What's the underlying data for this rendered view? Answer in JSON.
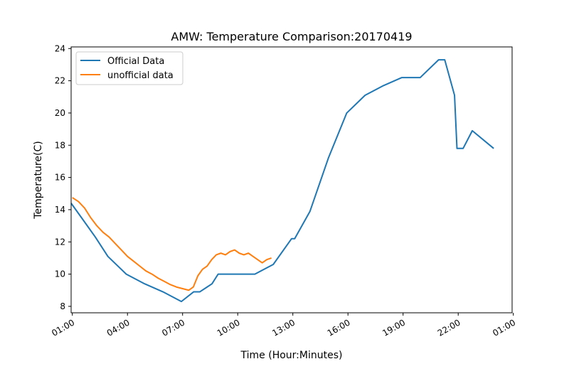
{
  "chart_data": {
    "type": "line",
    "title": "AMW: Temperature Comparison:20170419",
    "xlabel": "Time (Hour:Minutes)",
    "ylabel": "Temperature(C)",
    "xlim": [
      "00:56",
      "24:56"
    ],
    "ylim": [
      7.6,
      24.1
    ],
    "x_ticks": [
      "01:00",
      "04:00",
      "07:00",
      "10:00",
      "13:00",
      "16:00",
      "19:00",
      "22:00",
      "01:00"
    ],
    "y_ticks": [
      "8",
      "10",
      "12",
      "14",
      "16",
      "18",
      "20",
      "22",
      "24"
    ],
    "grid": false,
    "legend_position": "upper left",
    "series": [
      {
        "name": "Official Data",
        "color": "#1f77b4",
        "points": [
          [
            "00:56",
            14.4
          ],
          [
            "01:30",
            13.5
          ],
          [
            "02:15",
            12.3
          ],
          [
            "02:56",
            11.1
          ],
          [
            "03:56",
            10.0
          ],
          [
            "04:56",
            9.4
          ],
          [
            "05:56",
            8.9
          ],
          [
            "06:56",
            8.3
          ],
          [
            "07:36",
            8.9
          ],
          [
            "07:56",
            8.9
          ],
          [
            "08:20",
            9.2
          ],
          [
            "08:36",
            9.4
          ],
          [
            "08:56",
            10.0
          ],
          [
            "09:56",
            10.0
          ],
          [
            "10:56",
            10.0
          ],
          [
            "11:56",
            10.6
          ],
          [
            "12:56",
            12.2
          ],
          [
            "13:06",
            12.2
          ],
          [
            "13:56",
            13.9
          ],
          [
            "14:56",
            17.2
          ],
          [
            "15:56",
            20.0
          ],
          [
            "16:56",
            21.1
          ],
          [
            "17:56",
            21.7
          ],
          [
            "18:56",
            22.2
          ],
          [
            "19:56",
            22.2
          ],
          [
            "20:56",
            23.3
          ],
          [
            "21:16",
            23.3
          ],
          [
            "21:48",
            21.1
          ],
          [
            "21:56",
            17.8
          ],
          [
            "22:16",
            17.8
          ],
          [
            "22:46",
            18.9
          ],
          [
            "23:56",
            17.8
          ]
        ]
      },
      {
        "name": "unofficial data",
        "color": "#ff7f0e",
        "points": [
          [
            "01:00",
            14.75
          ],
          [
            "01:20",
            14.5
          ],
          [
            "01:40",
            14.1
          ],
          [
            "02:00",
            13.5
          ],
          [
            "02:20",
            13.0
          ],
          [
            "02:40",
            12.6
          ],
          [
            "03:00",
            12.3
          ],
          [
            "03:20",
            11.9
          ],
          [
            "03:40",
            11.5
          ],
          [
            "04:00",
            11.1
          ],
          [
            "04:20",
            10.8
          ],
          [
            "04:40",
            10.5
          ],
          [
            "05:00",
            10.2
          ],
          [
            "05:20",
            10.0
          ],
          [
            "05:40",
            9.75
          ],
          [
            "06:00",
            9.55
          ],
          [
            "06:20",
            9.35
          ],
          [
            "06:40",
            9.2
          ],
          [
            "07:00",
            9.1
          ],
          [
            "07:20",
            9.0
          ],
          [
            "07:35",
            9.2
          ],
          [
            "07:50",
            9.9
          ],
          [
            "08:05",
            10.3
          ],
          [
            "08:20",
            10.5
          ],
          [
            "08:35",
            10.9
          ],
          [
            "08:50",
            11.2
          ],
          [
            "09:05",
            11.3
          ],
          [
            "09:20",
            11.2
          ],
          [
            "09:35",
            11.4
          ],
          [
            "09:50",
            11.5
          ],
          [
            "10:05",
            11.3
          ],
          [
            "10:20",
            11.2
          ],
          [
            "10:35",
            11.3
          ],
          [
            "10:50",
            11.1
          ],
          [
            "11:05",
            10.9
          ],
          [
            "11:20",
            10.7
          ],
          [
            "11:35",
            10.9
          ],
          [
            "11:50",
            11.0
          ]
        ]
      }
    ]
  }
}
